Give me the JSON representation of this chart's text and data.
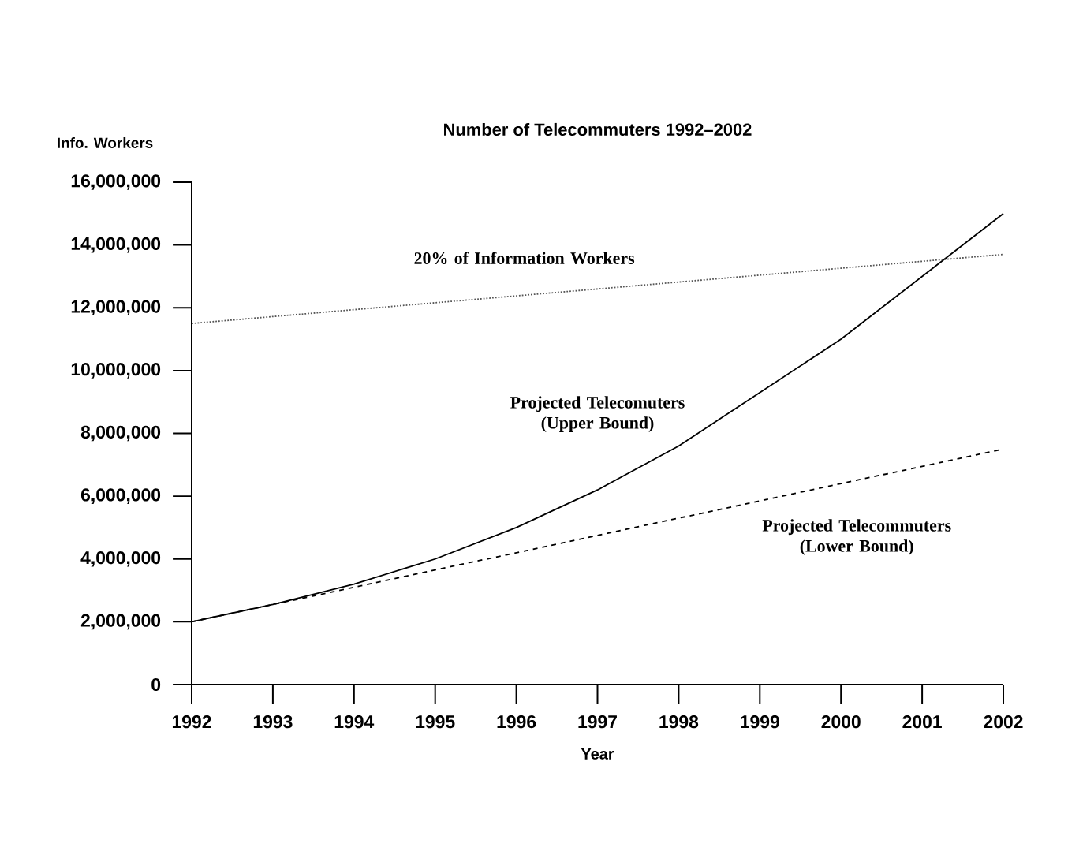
{
  "chart_data": {
    "type": "line",
    "title": "Number of Telecommuters 1992–2002",
    "xlabel": "Year",
    "ylabel": "Info. Workers",
    "x": [
      1992,
      1993,
      1994,
      1995,
      1996,
      1997,
      1998,
      1999,
      2000,
      2001,
      2002
    ],
    "series": [
      {
        "name": "Projected Telecomuters (Upper Bound)",
        "color": "#000000",
        "line_style": "solid",
        "values": [
          2000000,
          2550000,
          3200000,
          4000000,
          5000000,
          6200000,
          7600000,
          9300000,
          11000000,
          13000000,
          15000000
        ]
      },
      {
        "name": "Projected Telecommuters (Lower Bound)",
        "color": "#000000",
        "line_style": "dashed",
        "values": [
          2000000,
          2550000,
          3100000,
          3650000,
          4200000,
          4750000,
          5300000,
          5850000,
          6400000,
          6950000,
          7500000
        ]
      },
      {
        "name": "20% of Information Workers",
        "color": "#555555",
        "line_style": "dotted",
        "values": [
          11500000,
          11720000,
          11940000,
          12160000,
          12380000,
          12600000,
          12820000,
          13040000,
          13260000,
          13480000,
          13700000
        ]
      }
    ],
    "xlim": [
      1992,
      2002
    ],
    "ylim": [
      0,
      16000000
    ],
    "xticks": [
      1992,
      1993,
      1994,
      1995,
      1996,
      1997,
      1998,
      1999,
      2000,
      2001,
      2002
    ],
    "yticks": [
      {
        "value": 0,
        "label": "0"
      },
      {
        "value": 2000000,
        "label": "2,000,000"
      },
      {
        "value": 4000000,
        "label": "4,000,000"
      },
      {
        "value": 6000000,
        "label": "6,000,000"
      },
      {
        "value": 8000000,
        "label": "8,000,000"
      },
      {
        "value": 10000000,
        "label": "10,000,000"
      },
      {
        "value": 12000000,
        "label": "12,000,000"
      },
      {
        "value": 14000000,
        "label": "14,000,000"
      },
      {
        "value": 16000000,
        "label": "16,000,000"
      }
    ],
    "grid": false,
    "legend": false,
    "marker": "none"
  }
}
